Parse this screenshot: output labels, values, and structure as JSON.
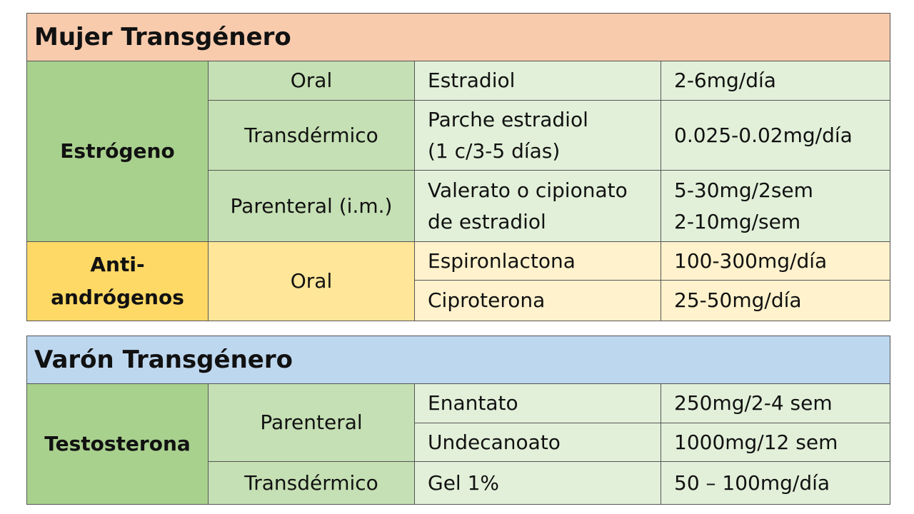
{
  "tables": [
    {
      "title": "Mujer Transgénero",
      "groups": [
        {
          "hormone": "Estrógeno",
          "routes": [
            {
              "route": "Oral",
              "rows": [
                [
                  "Estradiol",
                  "2-6mg/día"
                ]
              ]
            },
            {
              "route": "Transdérmico",
              "rows": [
                [
                  "Parche estradiol\n(1 c/3-5 días)",
                  "0.025-0.02mg/día"
                ]
              ]
            },
            {
              "route": "Parenteral (i.m.)",
              "rows": [
                [
                  "Valerato o cipionato\nde estradiol",
                  "5-30mg/2sem\n2-10mg/sem"
                ]
              ]
            }
          ]
        },
        {
          "hormone": "Anti-\nandrógenos",
          "routes": [
            {
              "route": "Oral",
              "rows": [
                [
                  "Espironlactona",
                  "100-300mg/día"
                ],
                [
                  "Ciproterona",
                  "25-50mg/día"
                ]
              ]
            }
          ]
        }
      ]
    },
    {
      "title": "Varón Transgénero",
      "groups": [
        {
          "hormone": "Testosterona",
          "routes": [
            {
              "route": "Parenteral",
              "rows": [
                [
                  "Enantato",
                  "250mg/2-4 sem"
                ],
                [
                  "Undecanoato",
                  "1000mg/12 sem"
                ]
              ]
            },
            {
              "route": "Transdérmico",
              "rows": [
                [
                  "Gel 1%",
                  "50 – 100mg/día"
                ]
              ]
            }
          ]
        }
      ]
    }
  ]
}
